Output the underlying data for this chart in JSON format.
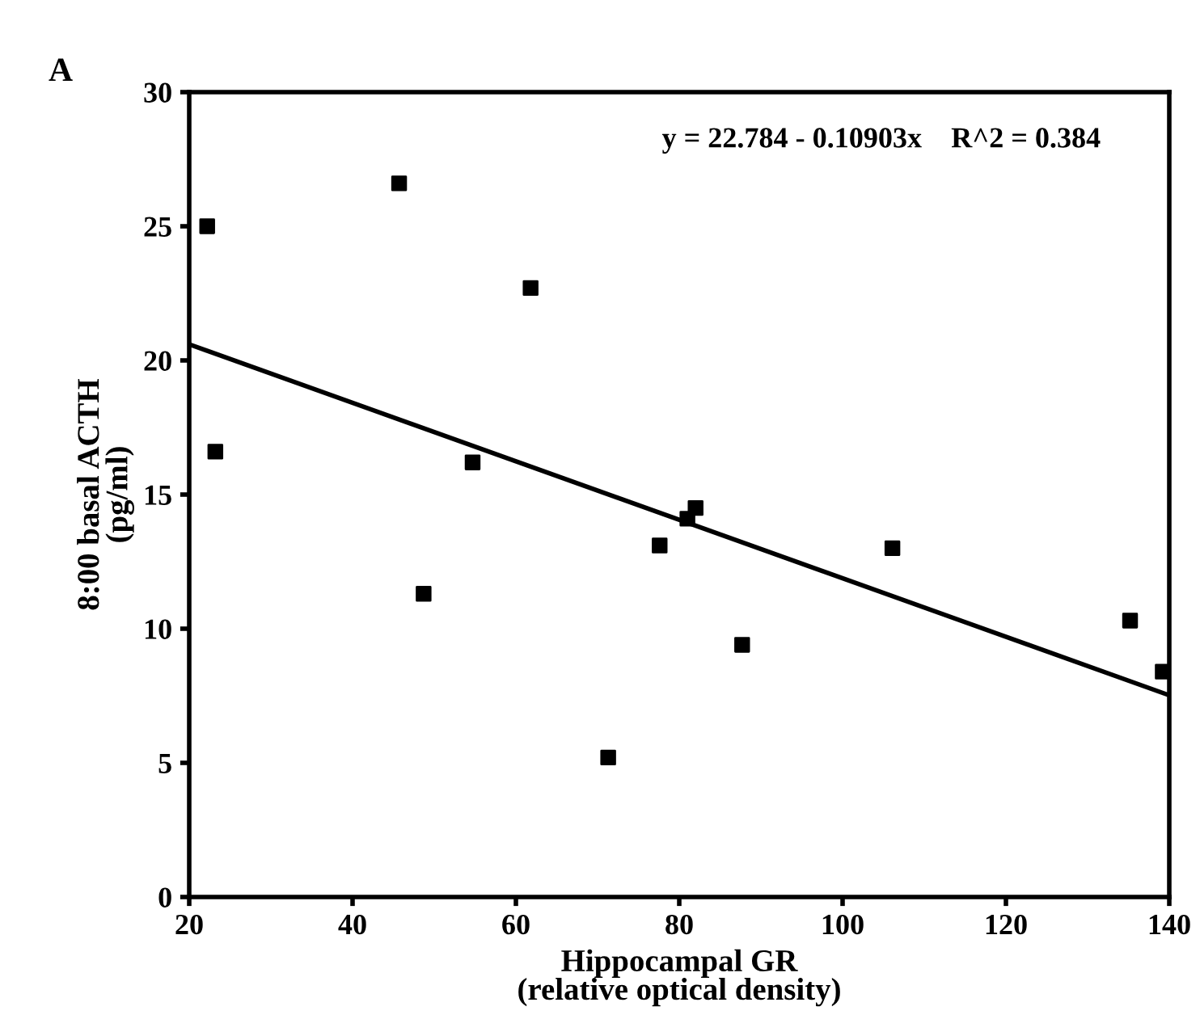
{
  "chart_data": {
    "type": "scatter",
    "xlabel": "Hippocampal GR\n(relative optical density)",
    "ylabel": "8:00 basal ACTH\n(pg/ml)",
    "annotations": [
      "A",
      "y = 22.784 - 0.10903x    R^2 = 0.384"
    ],
    "series": [
      {
        "color": "#000000",
        "marker": "square",
        "x": [
          22.2,
          45.7,
          61.8,
          23.2,
          54.7,
          48.7,
          71.3,
          77.6,
          82,
          81,
          87.7,
          106.1,
          135.2,
          139.2
        ],
        "values": [
          25.0,
          26.6,
          22.7,
          16.6,
          16.2,
          11.3,
          5.2,
          13.1,
          14.5,
          14.1,
          9.4,
          13.0,
          10.3,
          8.4
        ]
      },
      {
        "type": "line",
        "color": "#000000",
        "marker": "none",
        "line_style": "solid",
        "x": [
          20,
          140
        ],
        "values": [
          20.6,
          7.52
        ]
      }
    ],
    "xlim": [
      20,
      140
    ],
    "xticks": [
      20,
      40,
      60,
      80,
      100,
      120,
      140
    ],
    "ylim": [
      0,
      30
    ],
    "yticks": [
      0,
      5,
      10,
      15,
      20,
      25,
      30
    ],
    "grid": false,
    "legend": false
  }
}
